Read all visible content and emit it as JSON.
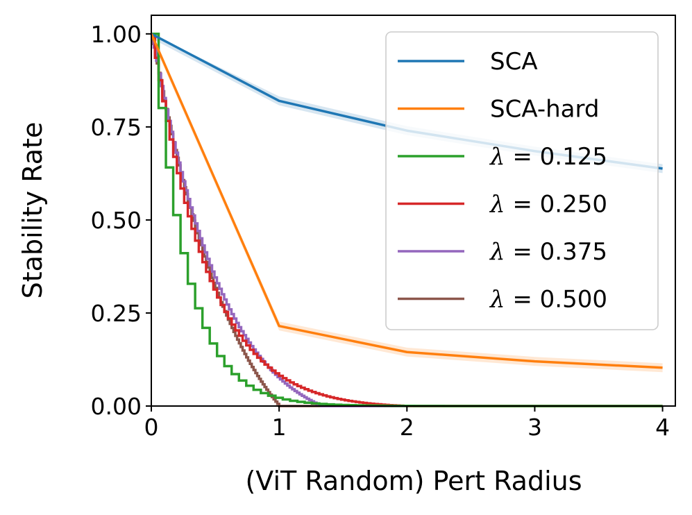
{
  "chart_data": {
    "type": "line",
    "title": "",
    "xlabel": "(ViT Random) Pert Radius",
    "ylabel": "Stability Rate",
    "xlim": [
      0,
      4.1
    ],
    "ylim": [
      0,
      1.05
    ],
    "xticks": [
      0,
      1,
      2,
      3,
      4
    ],
    "xtick_labels": [
      "0",
      "1",
      "2",
      "3",
      "4"
    ],
    "yticks": [
      0,
      0.25,
      0.5,
      0.75,
      1.0
    ],
    "ytick_labels": [
      "0.00",
      "0.25",
      "0.50",
      "0.75",
      "1.00"
    ],
    "grid": false,
    "legend_position": "top-right",
    "series": [
      {
        "name": "SCA",
        "color": "#1f77b4",
        "style": "line",
        "band": 0.012,
        "points": [
          [
            0,
            1.0
          ],
          [
            1.0,
            0.82
          ],
          [
            2.0,
            0.74
          ],
          [
            3.0,
            0.685
          ],
          [
            4.0,
            0.638
          ]
        ]
      },
      {
        "name": "SCA-hard",
        "color": "#ff7f0e",
        "style": "line",
        "band": 0.012,
        "points": [
          [
            0,
            1.0
          ],
          [
            1.0,
            0.215
          ],
          [
            2.0,
            0.145
          ],
          [
            3.0,
            0.12
          ],
          [
            4.0,
            0.103
          ]
        ]
      },
      {
        "name": "λ = 0.125",
        "name_symbol": "λ",
        "name_value": " = 0.125",
        "color": "#2ca02c",
        "style": "step",
        "lambda": 0.125,
        "xmax": 4.0
      },
      {
        "name": "λ = 0.250",
        "name_symbol": "λ",
        "name_value": " = 0.250",
        "color": "#d62728",
        "style": "step",
        "lambda": 0.25,
        "xmax": 2.0
      },
      {
        "name": "λ = 0.375",
        "name_symbol": "λ",
        "name_value": " = 0.375",
        "color": "#9467bd",
        "style": "step",
        "lambda": 0.375,
        "xmax": 1.33
      },
      {
        "name": "λ = 0.500",
        "name_symbol": "λ",
        "name_value": " = 0.500",
        "color": "#8c564b",
        "style": "step",
        "lambda": 0.5,
        "xmax": 1.0
      }
    ]
  }
}
